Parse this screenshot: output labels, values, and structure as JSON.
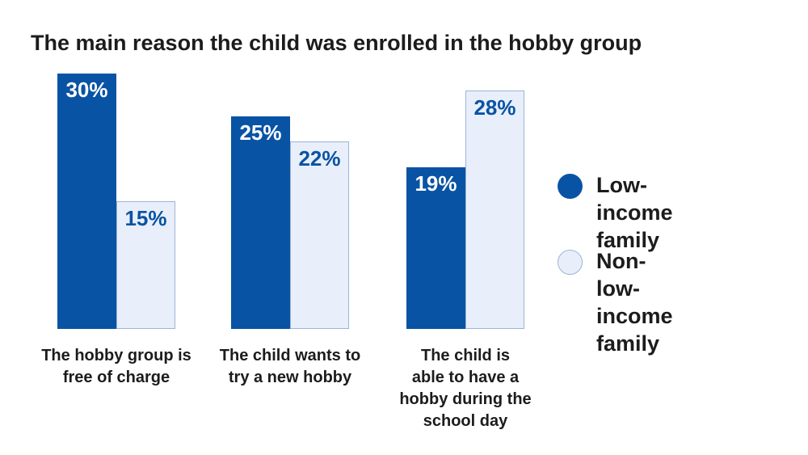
{
  "page": {
    "background_color": "#ffffff",
    "text_color": "#1c1c1c"
  },
  "chart_data": {
    "type": "bar",
    "title": "The main reason the child was enrolled in the hobby group",
    "categories": [
      "The hobby group is free of charge",
      "The child wants to try a new hobby",
      "The child is able to have a hobby during the school day"
    ],
    "categories_display": [
      "The hobby group is\nfree of charge",
      "The child wants to\ntry a new hobby",
      "The child is\nable to have a\nhobby during the\nschool day"
    ],
    "series": [
      {
        "name": "Low-income family",
        "display_name": "Low-income\nfamily",
        "values": [
          30,
          25,
          19
        ],
        "color": "#0953a4",
        "border_color": "",
        "value_text_color": "#ffffff"
      },
      {
        "name": "Non-low-income family",
        "display_name": "Non-low-\nincome family",
        "values": [
          15,
          22,
          28
        ],
        "color": "#e8effa",
        "border_color": "#9cb5d6",
        "value_text_color": "#0a53a3"
      }
    ],
    "value_suffix": "%",
    "ylim": [
      0,
      30
    ],
    "grid": false,
    "axes_hidden": true,
    "legend_position": "right",
    "value_labels": [
      "30%",
      "25%",
      "19%",
      "15%",
      "22%",
      "28%"
    ]
  }
}
